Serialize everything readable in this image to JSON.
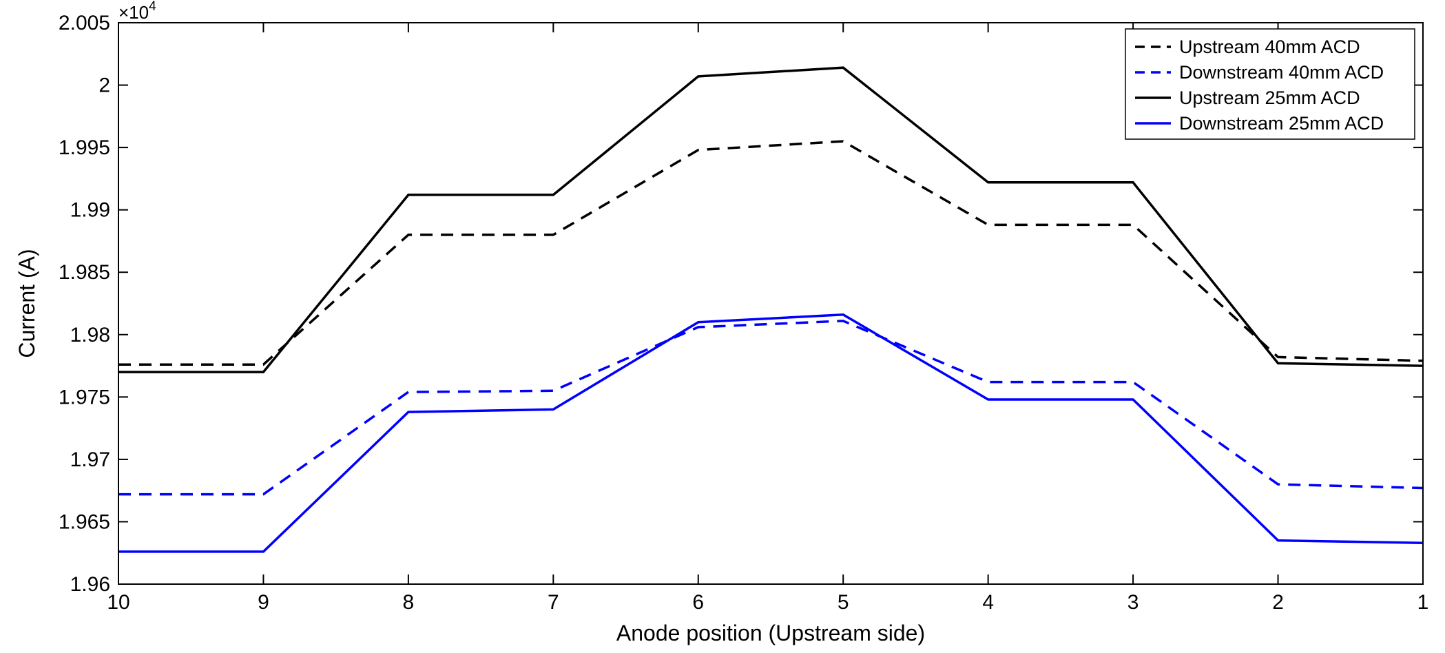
{
  "chart_data": {
    "type": "line",
    "xlabel": "Anode position (Upstream side)",
    "ylabel": "Current (A)",
    "x": [
      10,
      9,
      8,
      7,
      6,
      5,
      4,
      3,
      2,
      1
    ],
    "xlim": [
      10,
      1
    ],
    "x_reversed": true,
    "ylim": [
      1.96,
      2.005
    ],
    "y_exponent": "4",
    "y_exponent_prefix": "×10",
    "x_ticks": [
      "10",
      "9",
      "8",
      "7",
      "6",
      "5",
      "4",
      "3",
      "2",
      "1"
    ],
    "y_ticks": [
      "1.96",
      "1.965",
      "1.97",
      "1.975",
      "1.98",
      "1.985",
      "1.99",
      "1.995",
      "2",
      "2.005"
    ],
    "grid": false,
    "legend_position": "top-right",
    "series": [
      {
        "name": "Upstream 40mm ACD",
        "color": "#000000",
        "dash": "dashed",
        "values": [
          1.9776,
          1.9776,
          1.988,
          1.988,
          1.9948,
          1.9955,
          1.9888,
          1.9888,
          1.9782,
          1.9779
        ]
      },
      {
        "name": "Downstream 40mm ACD",
        "color": "#0000ff",
        "dash": "dashed",
        "values": [
          1.9672,
          1.9672,
          1.9754,
          1.9755,
          1.9806,
          1.9811,
          1.9762,
          1.9762,
          1.968,
          1.9677
        ]
      },
      {
        "name": "Upstream 25mm ACD",
        "color": "#000000",
        "dash": "solid",
        "values": [
          1.977,
          1.977,
          1.9912,
          1.9912,
          2.0007,
          2.0014,
          1.9922,
          1.9922,
          1.9777,
          1.9775
        ]
      },
      {
        "name": "Downstream 25mm ACD",
        "color": "#0000ff",
        "dash": "solid",
        "values": [
          1.9626,
          1.9626,
          1.9738,
          1.974,
          1.981,
          1.9816,
          1.9748,
          1.9748,
          1.9635,
          1.9633
        ]
      }
    ]
  }
}
